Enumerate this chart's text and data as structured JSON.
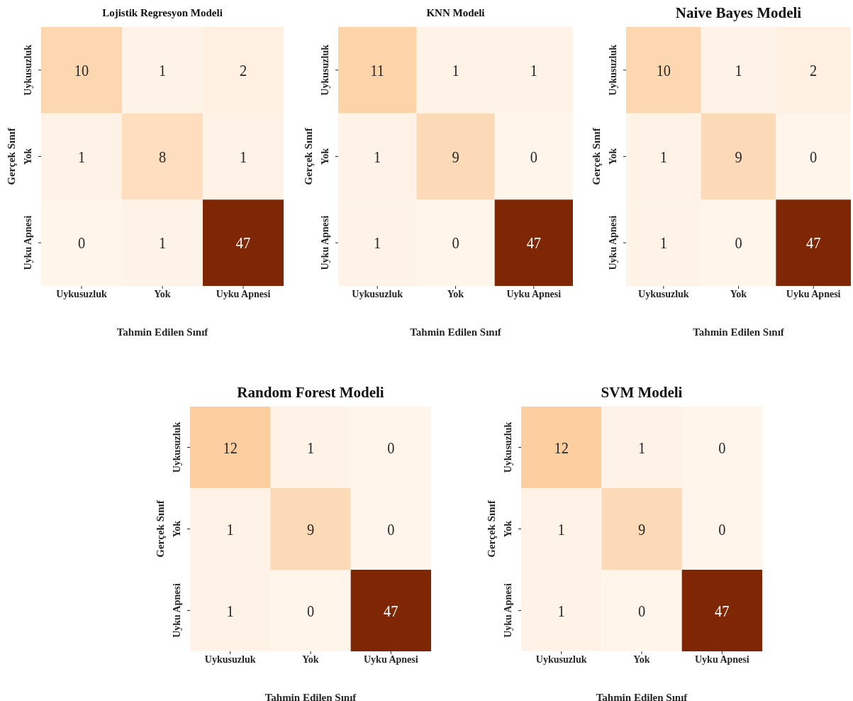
{
  "chart_data": [
    {
      "type": "heatmap",
      "title": "Lojistik Regresyon Modeli",
      "xlabel": "Tahmin Edilen Sınıf",
      "ylabel": "Gerçek Sınıf",
      "categories": [
        "Uykusuzluk",
        "Yok",
        "Uyku Apnesi"
      ],
      "y_categories": [
        "Uykusuzluk",
        "Yok",
        "Uyku Apnesi"
      ],
      "cells": [
        [
          10,
          1,
          2
        ],
        [
          1,
          8,
          1
        ],
        [
          0,
          1,
          47
        ]
      ],
      "data_labels": true
    },
    {
      "type": "heatmap",
      "title": "KNN Modeli",
      "xlabel": "Tahmin Edilen Sınıf",
      "ylabel": "Gerçek Sınıf",
      "categories": [
        "Uykusuzluk",
        "Yok",
        "Uyku Apnesi"
      ],
      "y_categories": [
        "Uykusuzluk",
        "Yok",
        "Uyku Apnesi"
      ],
      "cells": [
        [
          11,
          1,
          1
        ],
        [
          1,
          9,
          0
        ],
        [
          1,
          0,
          47
        ]
      ],
      "data_labels": true
    },
    {
      "type": "heatmap",
      "title": "Naive Bayes Modeli",
      "xlabel": "Tahmin Edilen Sınıf",
      "ylabel": "Gerçek Sınıf",
      "categories": [
        "Uykusuzluk",
        "Yok",
        "Uyku Apnesi"
      ],
      "y_categories": [
        "Uykusuzluk",
        "Yok",
        "Uyku Apnesi"
      ],
      "cells": [
        [
          10,
          1,
          2
        ],
        [
          1,
          9,
          0
        ],
        [
          1,
          0,
          47
        ]
      ],
      "data_labels": true
    },
    {
      "type": "heatmap",
      "title": "Random Forest Modeli",
      "xlabel": "Tahmin Edilen Sınıf",
      "ylabel": "Gerçek Sınıf",
      "categories": [
        "Uykusuzluk",
        "Yok",
        "Uyku Apnesi"
      ],
      "y_categories": [
        "Uykusuzluk",
        "Yok",
        "Uyku Apnesi"
      ],
      "cells": [
        [
          12,
          1,
          0
        ],
        [
          1,
          9,
          0
        ],
        [
          1,
          0,
          47
        ]
      ],
      "data_labels": true
    },
    {
      "type": "heatmap",
      "title": "SVM Modeli",
      "xlabel": "Tahmin Edilen Sınıf",
      "ylabel": "Gerçek Sınıf",
      "categories": [
        "Uykusuzluk",
        "Yok",
        "Uyku Apnesi"
      ],
      "y_categories": [
        "Uykusuzluk",
        "Yok",
        "Uyku Apnesi"
      ],
      "cells": [
        [
          12,
          1,
          0
        ],
        [
          1,
          9,
          0
        ],
        [
          1,
          0,
          47
        ]
      ],
      "data_labels": true
    }
  ]
}
